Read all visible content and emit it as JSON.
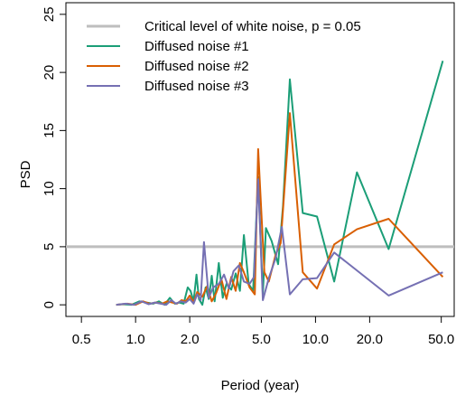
{
  "chart_data": {
    "type": "line",
    "xscale": "log",
    "xlabel": "Period (year)",
    "ylabel": "PSD",
    "xlim": [
      0.41,
      59
    ],
    "ylim": [
      -1,
      26
    ],
    "xticks": [
      0.5,
      1.0,
      2.0,
      5.0,
      10.0,
      20.0,
      50.0
    ],
    "xtick_labels": [
      "0.5",
      "1.0",
      "2.0",
      "5.0",
      "10.0",
      "20.0",
      "50.0"
    ],
    "yticks": [
      0,
      5,
      10,
      15,
      20,
      25
    ],
    "ytick_labels": [
      "0",
      "5",
      "10",
      "15",
      "20",
      "25"
    ],
    "legend_position": "top-left",
    "grid": false,
    "reference_line": {
      "name": "Critical level of white noise, p = 0.05",
      "y": 5,
      "color": "#bebebe"
    },
    "series": [
      {
        "name": "Diffused noise #1",
        "color": "#1b9e77",
        "points": [
          [
            0.78,
            0.0
          ],
          [
            0.85,
            0.05
          ],
          [
            0.95,
            0.0
          ],
          [
            1.05,
            0.3
          ],
          [
            1.15,
            0.2
          ],
          [
            1.25,
            0.1
          ],
          [
            1.35,
            0.3
          ],
          [
            1.45,
            0.0
          ],
          [
            1.55,
            0.6
          ],
          [
            1.65,
            0.1
          ],
          [
            1.75,
            0.2
          ],
          [
            1.85,
            0.1
          ],
          [
            1.95,
            1.5
          ],
          [
            2.02,
            1.2
          ],
          [
            2.1,
            0.3
          ],
          [
            2.18,
            2.6
          ],
          [
            2.25,
            0.5
          ],
          [
            2.35,
            0.0
          ],
          [
            2.45,
            1.5
          ],
          [
            2.55,
            0.5
          ],
          [
            2.65,
            2.5
          ],
          [
            2.75,
            0.3
          ],
          [
            2.9,
            3.6
          ],
          [
            3.05,
            0.6
          ],
          [
            3.2,
            1.8
          ],
          [
            3.4,
            1.3
          ],
          [
            3.6,
            2.7
          ],
          [
            3.8,
            1.2
          ],
          [
            4.0,
            6.0
          ],
          [
            4.25,
            1.8
          ],
          [
            4.5,
            1.2
          ],
          [
            4.8,
            11.0
          ],
          [
            5.1,
            0.9
          ],
          [
            5.3,
            6.6
          ],
          [
            5.7,
            5.5
          ],
          [
            6.2,
            3.5
          ],
          [
            6.6,
            8.5
          ],
          [
            7.2,
            19.4
          ],
          [
            8.5,
            7.9
          ],
          [
            10.2,
            7.6
          ],
          [
            12.7,
            2.0
          ],
          [
            17.0,
            11.4
          ],
          [
            25.5,
            4.8
          ],
          [
            51.0,
            21.0
          ]
        ]
      },
      {
        "name": "Diffused noise #2",
        "color": "#d95f02",
        "points": [
          [
            0.78,
            0.0
          ],
          [
            0.9,
            0.1
          ],
          [
            1.0,
            0.0
          ],
          [
            1.1,
            0.3
          ],
          [
            1.2,
            0.1
          ],
          [
            1.3,
            0.2
          ],
          [
            1.4,
            0.1
          ],
          [
            1.5,
            0.3
          ],
          [
            1.6,
            0.2
          ],
          [
            1.7,
            0.1
          ],
          [
            1.8,
            0.4
          ],
          [
            1.9,
            0.3
          ],
          [
            2.0,
            0.8
          ],
          [
            2.1,
            0.2
          ],
          [
            2.2,
            1.1
          ],
          [
            2.35,
            0.7
          ],
          [
            2.5,
            1.6
          ],
          [
            2.65,
            0.3
          ],
          [
            2.8,
            1.0
          ],
          [
            3.0,
            2.2
          ],
          [
            3.2,
            0.5
          ],
          [
            3.4,
            2.4
          ],
          [
            3.6,
            1.2
          ],
          [
            3.8,
            3.6
          ],
          [
            4.0,
            2.8
          ],
          [
            4.3,
            1.5
          ],
          [
            4.6,
            0.9
          ],
          [
            4.8,
            13.4
          ],
          [
            5.2,
            2.8
          ],
          [
            5.5,
            2.0
          ],
          [
            6.0,
            4.3
          ],
          [
            6.4,
            5.3
          ],
          [
            7.2,
            16.5
          ],
          [
            8.5,
            2.8
          ],
          [
            10.2,
            1.4
          ],
          [
            12.7,
            5.2
          ],
          [
            17.0,
            6.5
          ],
          [
            25.5,
            7.4
          ],
          [
            51.0,
            2.4
          ]
        ]
      },
      {
        "name": "Diffused noise #3",
        "color": "#7570b3",
        "points": [
          [
            0.78,
            0.0
          ],
          [
            0.88,
            0.1
          ],
          [
            0.98,
            0.0
          ],
          [
            1.08,
            0.3
          ],
          [
            1.18,
            0.05
          ],
          [
            1.28,
            0.2
          ],
          [
            1.38,
            0.1
          ],
          [
            1.48,
            0.0
          ],
          [
            1.58,
            0.4
          ],
          [
            1.68,
            0.1
          ],
          [
            1.78,
            0.3
          ],
          [
            1.9,
            0.2
          ],
          [
            2.0,
            0.5
          ],
          [
            2.1,
            0.1
          ],
          [
            2.2,
            0.9
          ],
          [
            2.3,
            0.4
          ],
          [
            2.4,
            5.4
          ],
          [
            2.55,
            0.6
          ],
          [
            2.7,
            1.5
          ],
          [
            2.9,
            1.8
          ],
          [
            3.1,
            2.6
          ],
          [
            3.3,
            1.4
          ],
          [
            3.5,
            2.9
          ],
          [
            3.75,
            3.4
          ],
          [
            4.0,
            2.0
          ],
          [
            4.3,
            1.8
          ],
          [
            4.55,
            2.4
          ],
          [
            4.8,
            10.8
          ],
          [
            5.1,
            0.4
          ],
          [
            5.5,
            2.3
          ],
          [
            6.0,
            4.0
          ],
          [
            6.5,
            6.7
          ],
          [
            7.2,
            0.9
          ],
          [
            8.5,
            2.2
          ],
          [
            10.2,
            2.3
          ],
          [
            12.7,
            4.5
          ],
          [
            25.5,
            0.8
          ],
          [
            51.0,
            2.8
          ]
        ]
      }
    ]
  }
}
